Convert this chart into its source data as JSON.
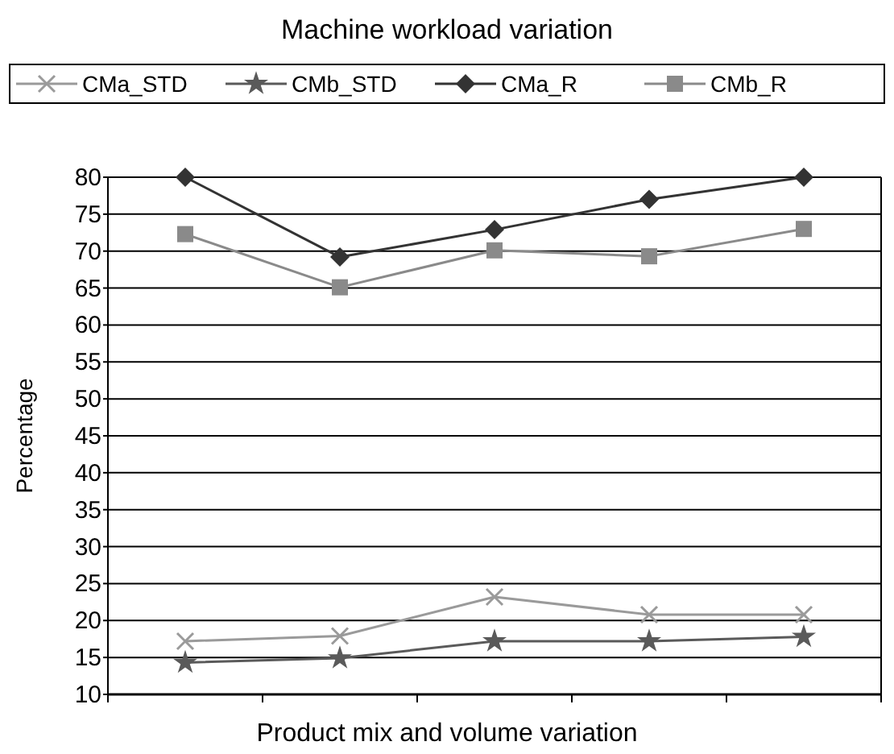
{
  "chart_data": {
    "type": "line",
    "title": "Machine workload variation",
    "xlabel": "Product mix and volume variation",
    "ylabel": "Percentage",
    "categories": [
      null,
      null,
      null,
      null,
      null
    ],
    "series": [
      {
        "name": "CMa_STD",
        "color": "#9a9a9a",
        "marker": "cross",
        "values": [
          17.2,
          17.9,
          23.2,
          20.8,
          20.8
        ]
      },
      {
        "name": "CMb_STD",
        "color": "#5a5a5a",
        "marker": "star",
        "values": [
          14.3,
          14.9,
          17.2,
          17.2,
          17.8
        ]
      },
      {
        "name": "CMa_R",
        "color": "#333333",
        "marker": "diamond",
        "values": [
          80,
          69.2,
          72.9,
          77,
          80
        ]
      },
      {
        "name": "CMb_R",
        "color": "#8a8a8a",
        "marker": "square",
        "values": [
          72.3,
          65.1,
          70.1,
          69.3,
          73
        ]
      }
    ],
    "ylim": [
      10,
      80
    ],
    "yticks": [
      10,
      15,
      20,
      25,
      30,
      35,
      40,
      45,
      50,
      55,
      60,
      65,
      70,
      75,
      80
    ],
    "grid": "y",
    "legend": "top",
    "line_style": "solid"
  }
}
